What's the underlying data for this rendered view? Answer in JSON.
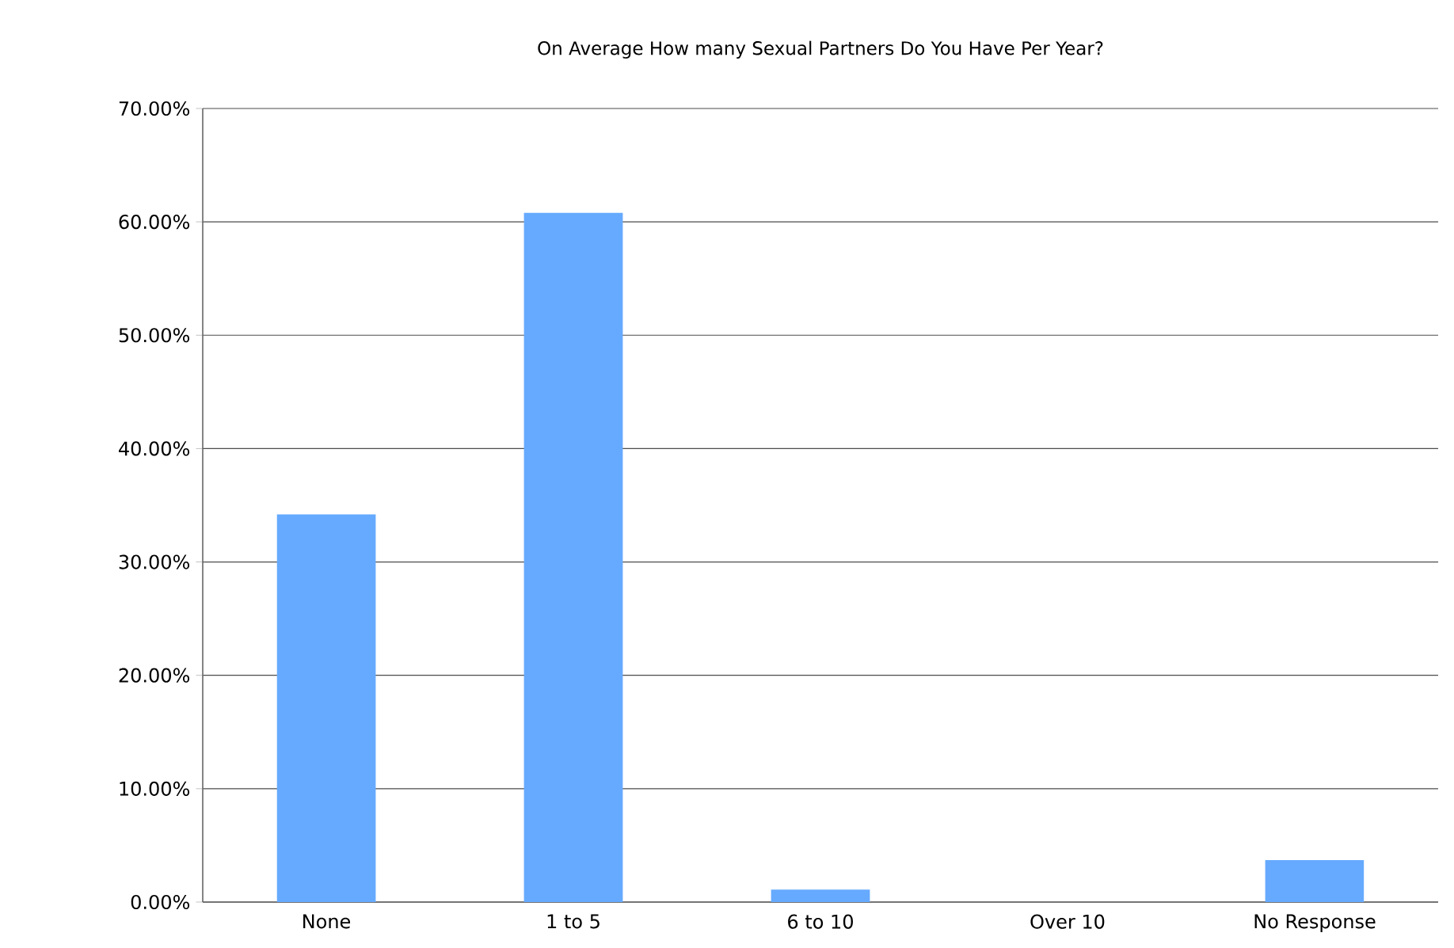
{
  "chart_data": {
    "type": "bar",
    "title": "On Average How many Sexual Partners Do You Have Per Year?",
    "categories": [
      "None",
      "1 to 5",
      "6 to 10",
      "Over 10",
      "No Response"
    ],
    "values": [
      34.2,
      60.8,
      1.1,
      0,
      3.7
    ],
    "color": "#66aaff",
    "ylim": [
      0,
      70
    ],
    "yticks": [
      {
        "value": 0,
        "label": "0.00%"
      },
      {
        "value": 10,
        "label": "10.00%"
      },
      {
        "value": 20,
        "label": "20.00%"
      },
      {
        "value": 30,
        "label": "30.00%"
      },
      {
        "value": 40,
        "label": "40.00%"
      },
      {
        "value": 50,
        "label": "50.00%"
      },
      {
        "value": 60,
        "label": "60.00%"
      },
      {
        "value": 70,
        "label": "70.00%"
      }
    ],
    "grid": "y"
  }
}
